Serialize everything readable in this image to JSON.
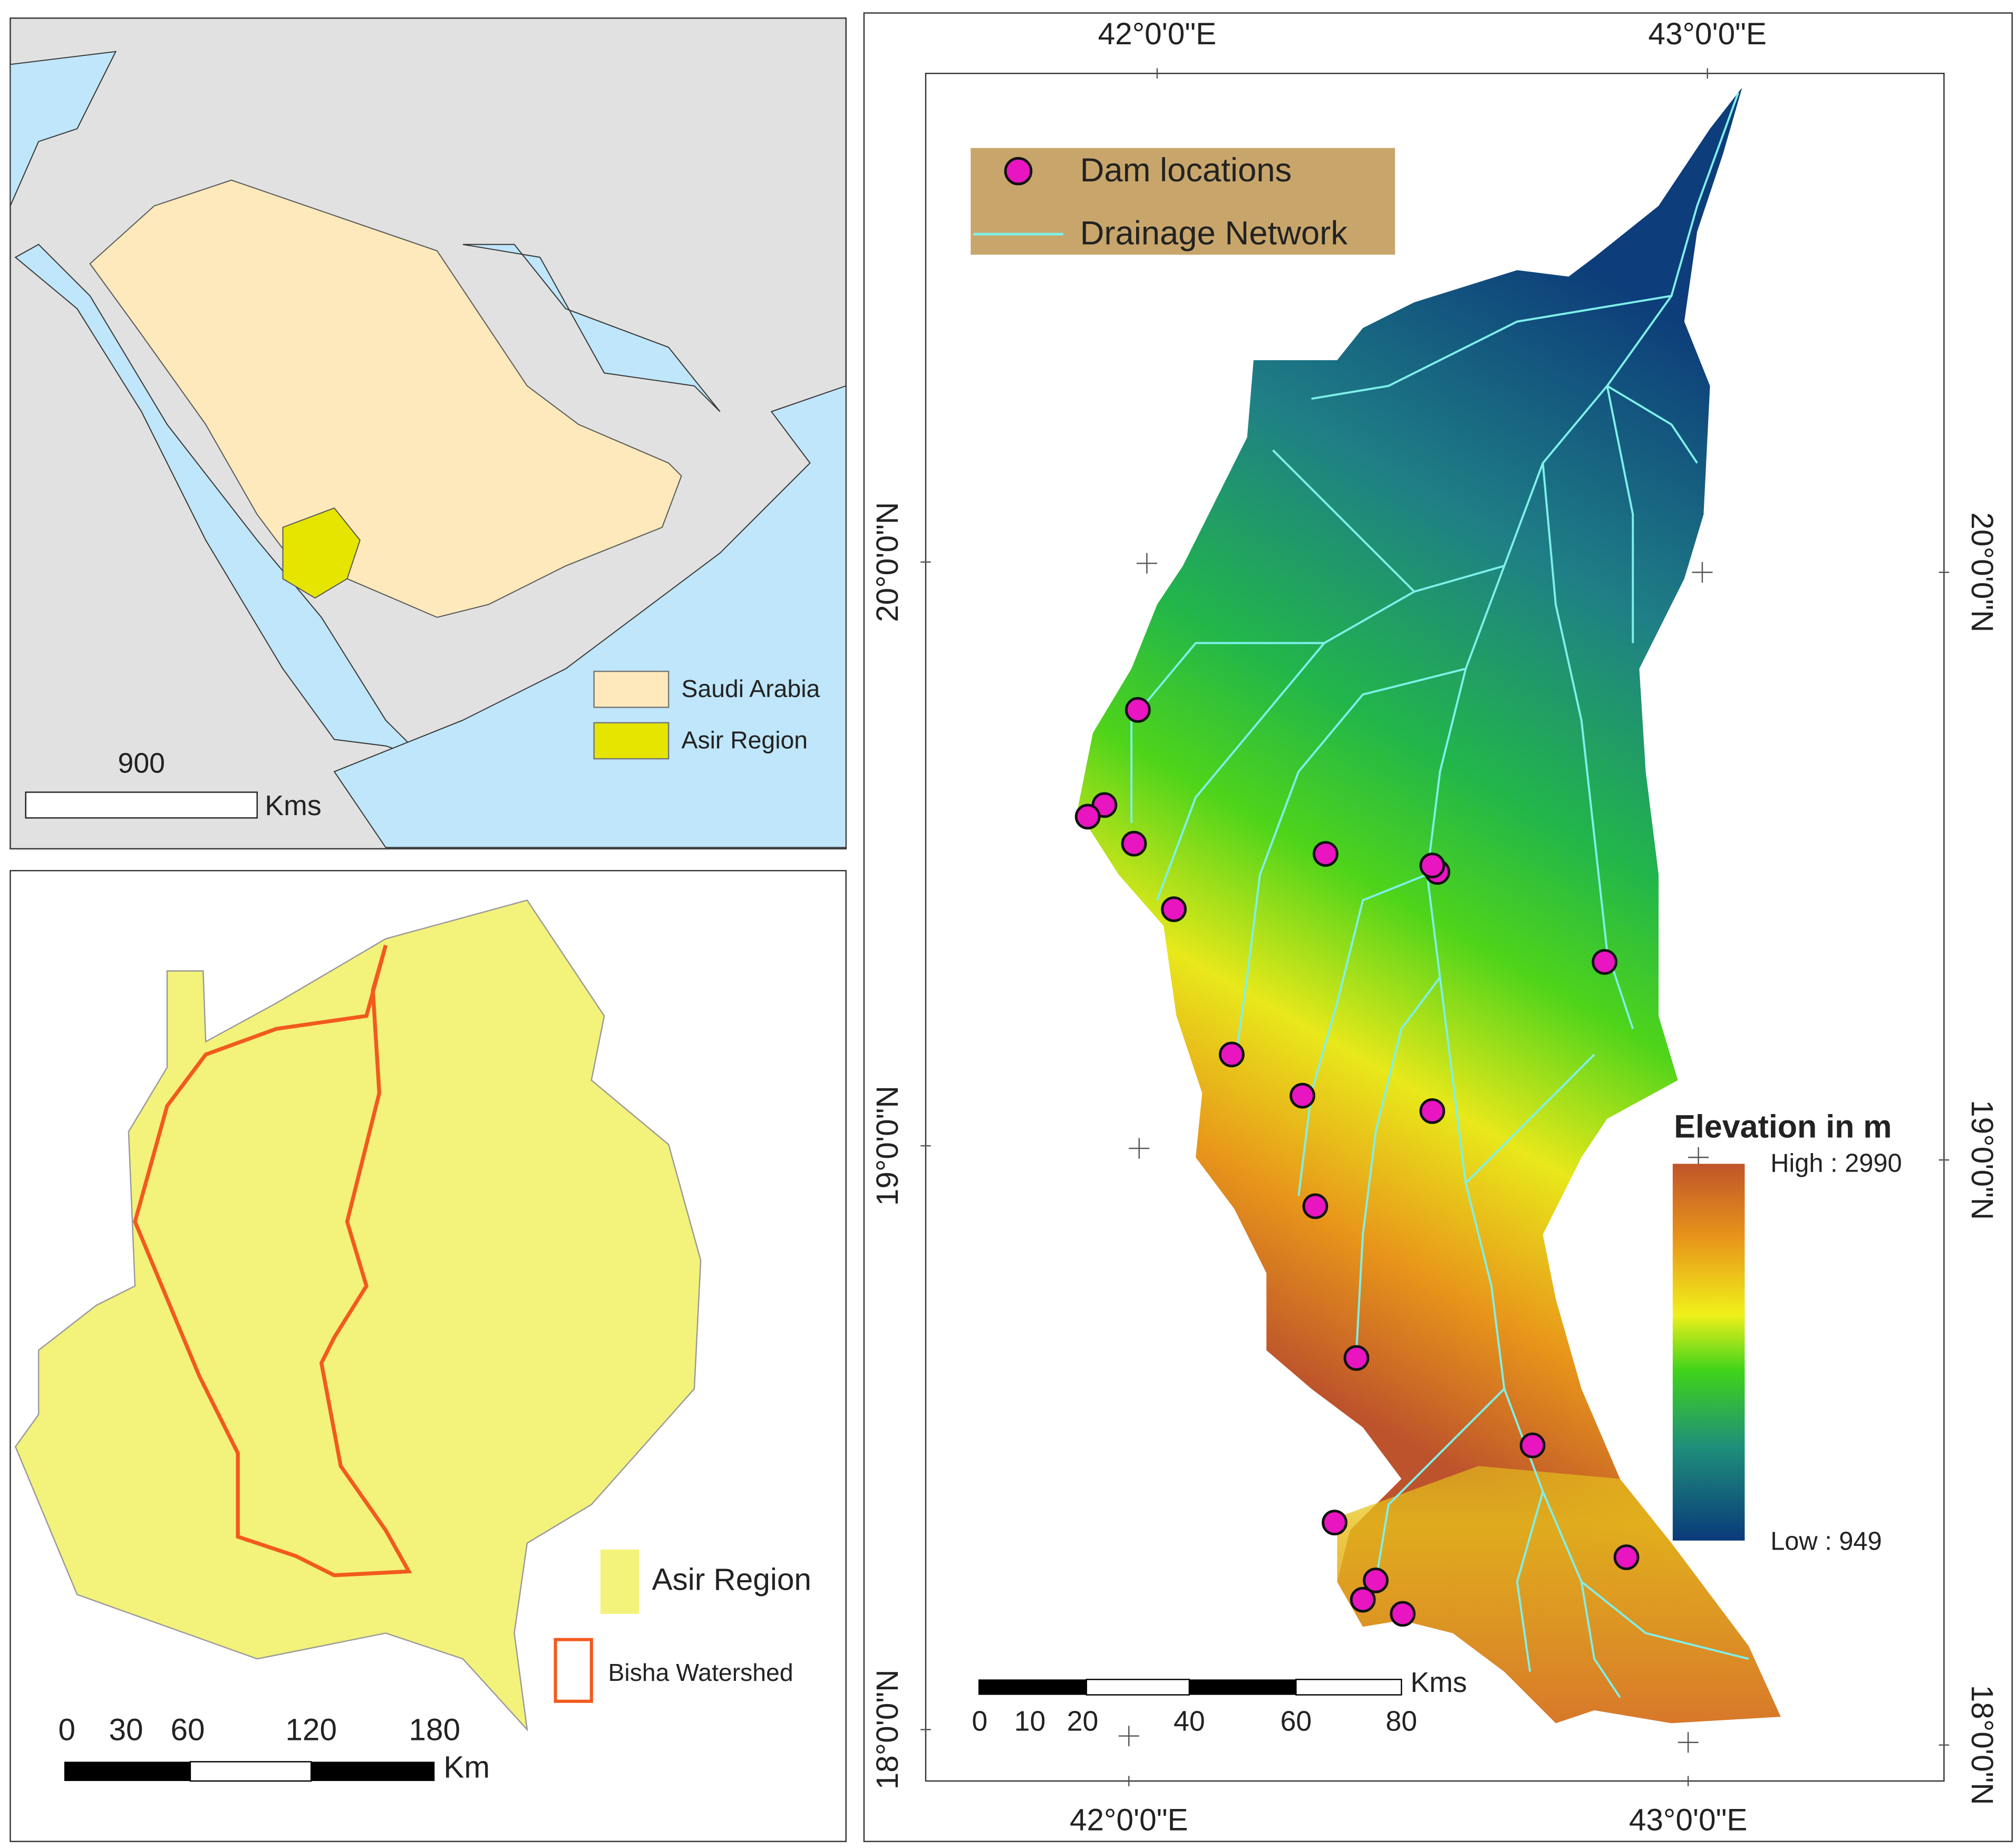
{
  "inset_map": {
    "legend": [
      "Saudi Arabia",
      "Asir Region"
    ],
    "scale_label": 900,
    "scale_unit": "Kms"
  },
  "region_map": {
    "legend": [
      "Asir Region",
      "Bisha Watershed"
    ],
    "scale_ticks": [
      0,
      30,
      60,
      120,
      180
    ],
    "scale_unit": "Km"
  },
  "main_map": {
    "legend": [
      "Dam locations",
      "Drainage Network"
    ],
    "longitude_labels": [
      "42°0'0\"E",
      "43°0'0\"E"
    ],
    "latitude_labels": [
      "20°0'0\"N",
      "19°0'0\"N",
      "18°0'0\"N"
    ],
    "elevation_legend": {
      "title": "Elevation in m",
      "high": "High : 2990",
      "low": "Low : 949"
    },
    "scale_ticks": [
      0,
      10,
      20,
      40,
      60,
      80
    ],
    "scale_unit": "Kms"
  }
}
